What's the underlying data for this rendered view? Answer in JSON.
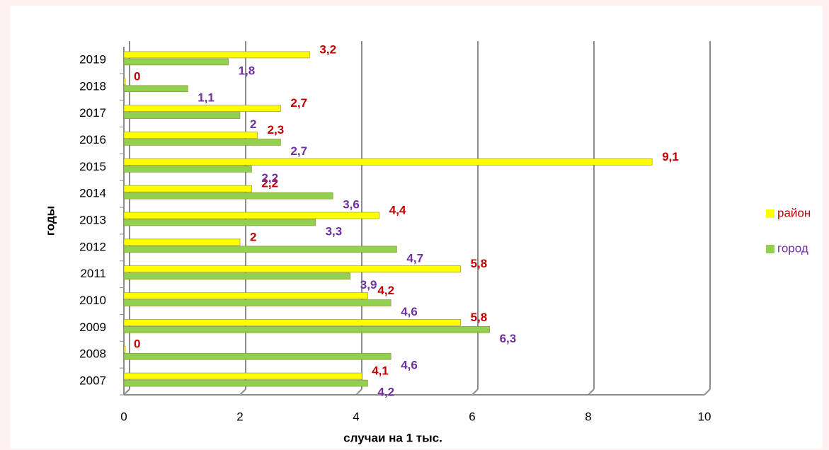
{
  "chart_data": {
    "type": "bar",
    "orientation": "horizontal",
    "categories": [
      "2007",
      "2008",
      "2009",
      "2010",
      "2011",
      "2012",
      "2013",
      "2014",
      "2015",
      "2016",
      "2017",
      "2018",
      "2019"
    ],
    "series": [
      {
        "name": "район",
        "color": "#ffff00",
        "label_color": "#c00000",
        "values": [
          4.1,
          0,
          5.8,
          4.2,
          5.8,
          2,
          4.4,
          2.2,
          9.1,
          2.3,
          2.7,
          0,
          3.2
        ],
        "value_labels": [
          "4,1",
          "0",
          "5,8",
          "4,2",
          "5,8",
          "2",
          "4,4",
          "2,2",
          "9,1",
          "2,3",
          "2,7",
          "0",
          "3,2"
        ]
      },
      {
        "name": "город",
        "color": "#92d050",
        "label_color": "#7030a0",
        "values": [
          4.2,
          4.6,
          6.3,
          4.6,
          3.9,
          4.7,
          3.3,
          3.6,
          2.2,
          2.7,
          2,
          1.1,
          1.8
        ],
        "value_labels": [
          "4,2",
          "4,6",
          "6,3",
          "4,6",
          "3,9",
          "4,7",
          "3,3",
          "3,6",
          "2,2",
          "2,7",
          "2",
          "1,1",
          "1,8"
        ]
      }
    ],
    "xlabel": "случаи на 1 тыс.",
    "ylabel": "годы",
    "xlim": [
      0,
      10
    ],
    "xticks": [
      0,
      2,
      4,
      6,
      8,
      10
    ],
    "grid": true,
    "legend": "right"
  }
}
